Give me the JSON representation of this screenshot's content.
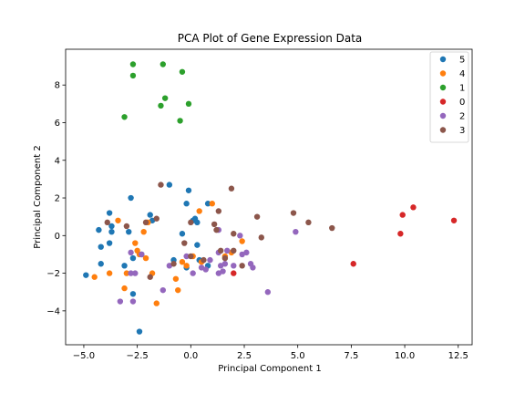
{
  "chart_data": {
    "type": "scatter",
    "title": "PCA Plot of Gene Expression Data",
    "xlabel": "Principal Component 1",
    "ylabel": "Principal Component 2",
    "xlim": [
      -5.85,
      13.15
    ],
    "ylim": [
      -5.8,
      9.9
    ],
    "xticks": [
      -5.0,
      -2.5,
      0.0,
      2.5,
      5.0,
      7.5,
      10.0,
      12.5
    ],
    "xtick_labels": [
      "−5.0",
      "−2.5",
      "0.0",
      "2.5",
      "5.0",
      "7.5",
      "10.0",
      "12.5"
    ],
    "yticks": [
      -4,
      -2,
      0,
      2,
      4,
      6,
      8
    ],
    "ytick_labels": [
      "−4",
      "−2",
      "0",
      "2",
      "4",
      "6",
      "8"
    ],
    "grid": false,
    "legend_position": "top-right",
    "series": [
      {
        "name": "5",
        "color": "#1f77b4",
        "points": [
          [
            -4.9,
            -2.1
          ],
          [
            -4.3,
            0.3
          ],
          [
            -4.2,
            -0.6
          ],
          [
            -4.2,
            -1.5
          ],
          [
            -3.8,
            1.2
          ],
          [
            -3.7,
            0.5
          ],
          [
            -3.8,
            -0.4
          ],
          [
            -3.7,
            0.2
          ],
          [
            -3.1,
            -1.6
          ],
          [
            -2.9,
            0.2
          ],
          [
            -2.8,
            2.0
          ],
          [
            -2.7,
            -1.2
          ],
          [
            -2.7,
            -3.1
          ],
          [
            -2.4,
            -5.1
          ],
          [
            -2.3,
            -1.0
          ],
          [
            -1.9,
            1.1
          ],
          [
            -1.8,
            0.8
          ],
          [
            -1.0,
            2.7
          ],
          [
            -0.8,
            -1.3
          ],
          [
            -0.4,
            0.1
          ],
          [
            -0.2,
            1.7
          ],
          [
            -0.1,
            2.4
          ],
          [
            0.1,
            0.8
          ],
          [
            0.2,
            0.9
          ],
          [
            0.3,
            0.7
          ],
          [
            0.3,
            -0.5
          ],
          [
            0.4,
            -1.3
          ],
          [
            0.8,
            1.7
          ],
          [
            0.8,
            -1.6
          ],
          [
            -0.2,
            -1.7
          ]
        ]
      },
      {
        "name": "4",
        "color": "#ff7f0e",
        "points": [
          [
            -4.5,
            -2.2
          ],
          [
            -3.8,
            -2.0
          ],
          [
            -3.4,
            0.8
          ],
          [
            -3.1,
            -2.8
          ],
          [
            -3.0,
            -2.0
          ],
          [
            -2.6,
            -0.4
          ],
          [
            -2.5,
            -0.8
          ],
          [
            -2.4,
            -1.0
          ],
          [
            -2.2,
            0.2
          ],
          [
            -2.1,
            -1.2
          ],
          [
            -2.0,
            0.7
          ],
          [
            -1.8,
            -2.0
          ],
          [
            -1.6,
            -3.6
          ],
          [
            -0.7,
            -2.3
          ],
          [
            -0.6,
            -2.9
          ],
          [
            -0.4,
            -1.4
          ],
          [
            -0.2,
            -1.6
          ],
          [
            0.1,
            -1.1
          ],
          [
            0.4,
            1.3
          ],
          [
            0.5,
            -1.4
          ],
          [
            1.0,
            1.7
          ],
          [
            1.6,
            -1.1
          ],
          [
            1.9,
            -0.9
          ],
          [
            2.4,
            -0.3
          ]
        ]
      },
      {
        "name": "1",
        "color": "#2ca02c",
        "points": [
          [
            -3.1,
            6.3
          ],
          [
            -2.7,
            8.5
          ],
          [
            -2.7,
            9.1
          ],
          [
            -1.4,
            6.9
          ],
          [
            -1.3,
            9.1
          ],
          [
            -1.2,
            7.3
          ],
          [
            -0.5,
            6.1
          ],
          [
            -0.4,
            8.7
          ],
          [
            -0.1,
            7.0
          ]
        ]
      },
      {
        "name": "0",
        "color": "#d62728",
        "points": [
          [
            2.0,
            -2.0
          ],
          [
            7.6,
            -1.5
          ],
          [
            9.8,
            0.1
          ],
          [
            9.9,
            1.1
          ],
          [
            10.4,
            1.5
          ],
          [
            12.3,
            0.8
          ]
        ]
      },
      {
        "name": "2",
        "color": "#9467bd",
        "points": [
          [
            -3.3,
            -3.5
          ],
          [
            -2.8,
            -2.0
          ],
          [
            -2.8,
            -0.9
          ],
          [
            -2.7,
            -3.5
          ],
          [
            -2.6,
            -2.0
          ],
          [
            -2.3,
            -1.0
          ],
          [
            -1.3,
            -2.9
          ],
          [
            -1.0,
            -1.6
          ],
          [
            -0.2,
            -1.1
          ],
          [
            0.1,
            -2.0
          ],
          [
            0.5,
            -1.7
          ],
          [
            0.7,
            -1.8
          ],
          [
            0.9,
            -1.3
          ],
          [
            1.3,
            -0.9
          ],
          [
            1.3,
            -2.0
          ],
          [
            1.4,
            -1.6
          ],
          [
            1.5,
            -1.9
          ],
          [
            1.6,
            -1.5
          ],
          [
            1.7,
            -0.8
          ],
          [
            2.0,
            -1.6
          ],
          [
            2.3,
            0.0
          ],
          [
            2.4,
            -1.0
          ],
          [
            2.6,
            -0.9
          ],
          [
            2.8,
            -1.5
          ],
          [
            2.9,
            -1.7
          ],
          [
            3.6,
            -3.0
          ],
          [
            4.9,
            0.2
          ],
          [
            1.3,
            0.3
          ]
        ]
      },
      {
        "name": "3",
        "color": "#8c564b",
        "points": [
          [
            -3.9,
            0.7
          ],
          [
            -3.0,
            0.5
          ],
          [
            -2.1,
            0.7
          ],
          [
            -1.9,
            -2.2
          ],
          [
            -1.6,
            0.9
          ],
          [
            -1.4,
            2.7
          ],
          [
            -0.8,
            -1.5
          ],
          [
            -0.3,
            -0.4
          ],
          [
            0.0,
            0.7
          ],
          [
            0.0,
            -1.1
          ],
          [
            0.6,
            -1.3
          ],
          [
            1.1,
            0.6
          ],
          [
            1.2,
            0.3
          ],
          [
            1.3,
            1.3
          ],
          [
            1.4,
            -0.8
          ],
          [
            1.6,
            -1.2
          ],
          [
            1.9,
            2.5
          ],
          [
            2.0,
            0.1
          ],
          [
            2.0,
            -0.8
          ],
          [
            2.4,
            -1.6
          ],
          [
            3.1,
            1.0
          ],
          [
            3.3,
            -0.1
          ],
          [
            4.8,
            1.2
          ],
          [
            5.5,
            0.7
          ],
          [
            6.6,
            0.4
          ]
        ]
      }
    ]
  }
}
